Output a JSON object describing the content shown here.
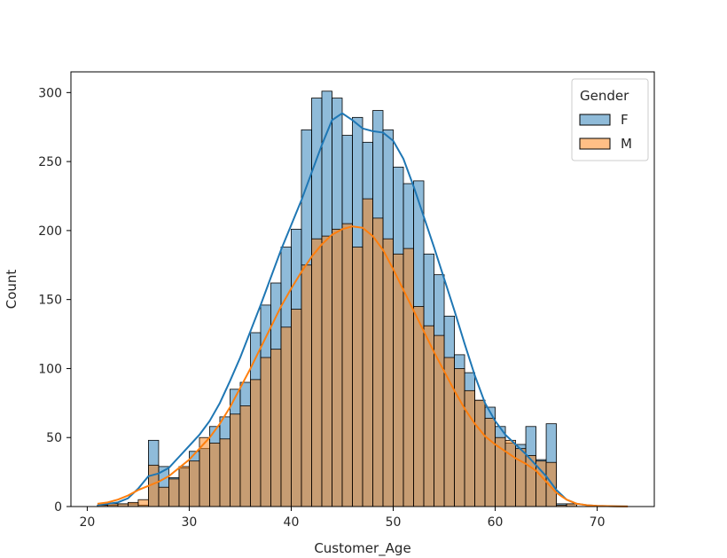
{
  "chart_data": {
    "type": "histogram",
    "xlabel": "Customer_Age",
    "ylabel": "Count",
    "xlim": [
      18.4,
      75.6
    ],
    "ylim": [
      0,
      315
    ],
    "xticks": [
      20,
      30,
      40,
      50,
      60,
      70
    ],
    "yticks": [
      0,
      50,
      100,
      150,
      200,
      250,
      300
    ],
    "grid": false,
    "legend": {
      "title": "Gender",
      "placement": "top-right",
      "entries": [
        "F",
        "M"
      ]
    },
    "bin_start": 21,
    "bin_width": 1,
    "series": [
      {
        "name": "F",
        "color": "#1f77b4",
        "values": [
          1,
          1,
          2,
          2,
          1,
          48,
          29,
          21,
          28,
          40,
          42,
          58,
          65,
          85,
          90,
          126,
          146,
          162,
          188,
          201,
          273,
          296,
          301,
          296,
          269,
          282,
          264,
          287,
          273,
          246,
          234,
          236,
          183,
          168,
          138,
          110,
          97,
          77,
          72,
          58,
          46,
          45,
          58,
          34,
          60,
          2,
          2,
          0,
          0,
          0,
          0,
          0
        ],
        "kde": [
          [
            21,
            1
          ],
          [
            22,
            2
          ],
          [
            23,
            3
          ],
          [
            24,
            6
          ],
          [
            25,
            13
          ],
          [
            26,
            22
          ],
          [
            27,
            24
          ],
          [
            28,
            28
          ],
          [
            29,
            36
          ],
          [
            30,
            44
          ],
          [
            31,
            52
          ],
          [
            32,
            62
          ],
          [
            33,
            75
          ],
          [
            34,
            91
          ],
          [
            35,
            108
          ],
          [
            36,
            127
          ],
          [
            37,
            146
          ],
          [
            38,
            166
          ],
          [
            39,
            186
          ],
          [
            40,
            204
          ],
          [
            41,
            222
          ],
          [
            42,
            242
          ],
          [
            43,
            262
          ],
          [
            44,
            280
          ],
          [
            45,
            285
          ],
          [
            46,
            280
          ],
          [
            47,
            274
          ],
          [
            48,
            272
          ],
          [
            49,
            271
          ],
          [
            50,
            265
          ],
          [
            51,
            252
          ],
          [
            52,
            232
          ],
          [
            53,
            210
          ],
          [
            54,
            188
          ],
          [
            55,
            165
          ],
          [
            56,
            142
          ],
          [
            57,
            118
          ],
          [
            58,
            95
          ],
          [
            59,
            75
          ],
          [
            60,
            62
          ],
          [
            61,
            52
          ],
          [
            62,
            45
          ],
          [
            63,
            38
          ],
          [
            64,
            30
          ],
          [
            65,
            22
          ],
          [
            66,
            12
          ],
          [
            67,
            5
          ],
          [
            68,
            2
          ],
          [
            69,
            1
          ],
          [
            70,
            0.5
          ],
          [
            71,
            0.3
          ],
          [
            72,
            0.2
          ],
          [
            73,
            0.1
          ]
        ]
      },
      {
        "name": "M",
        "color": "#ff7f0e",
        "values": [
          1,
          2,
          2,
          3,
          5,
          30,
          14,
          20,
          29,
          33,
          50,
          46,
          49,
          67,
          73,
          92,
          108,
          114,
          130,
          143,
          175,
          194,
          196,
          201,
          205,
          188,
          223,
          209,
          194,
          183,
          187,
          145,
          131,
          124,
          108,
          100,
          84,
          77,
          64,
          50,
          48,
          42,
          37,
          33,
          32,
          1,
          2,
          0,
          0,
          0,
          0,
          0
        ],
        "kde": [
          [
            21,
            2
          ],
          [
            22,
            3
          ],
          [
            23,
            5
          ],
          [
            24,
            8
          ],
          [
            25,
            12
          ],
          [
            26,
            15
          ],
          [
            27,
            18
          ],
          [
            28,
            22
          ],
          [
            29,
            28
          ],
          [
            30,
            34
          ],
          [
            31,
            42
          ],
          [
            32,
            50
          ],
          [
            33,
            60
          ],
          [
            34,
            72
          ],
          [
            35,
            86
          ],
          [
            36,
            100
          ],
          [
            37,
            115
          ],
          [
            38,
            130
          ],
          [
            39,
            145
          ],
          [
            40,
            158
          ],
          [
            41,
            170
          ],
          [
            42,
            181
          ],
          [
            43,
            190
          ],
          [
            44,
            197
          ],
          [
            45,
            201
          ],
          [
            46,
            203
          ],
          [
            47,
            202
          ],
          [
            48,
            196
          ],
          [
            49,
            186
          ],
          [
            50,
            172
          ],
          [
            51,
            157
          ],
          [
            52,
            142
          ],
          [
            53,
            127
          ],
          [
            54,
            112
          ],
          [
            55,
            98
          ],
          [
            56,
            84
          ],
          [
            57,
            71
          ],
          [
            58,
            60
          ],
          [
            59,
            51
          ],
          [
            60,
            45
          ],
          [
            61,
            40
          ],
          [
            62,
            35
          ],
          [
            63,
            31
          ],
          [
            64,
            26
          ],
          [
            65,
            18
          ],
          [
            66,
            10
          ],
          [
            67,
            5
          ],
          [
            68,
            2
          ],
          [
            69,
            1
          ],
          [
            70,
            0.5
          ],
          [
            71,
            0.3
          ],
          [
            72,
            0.2
          ],
          [
            73,
            0.1
          ]
        ]
      }
    ]
  }
}
